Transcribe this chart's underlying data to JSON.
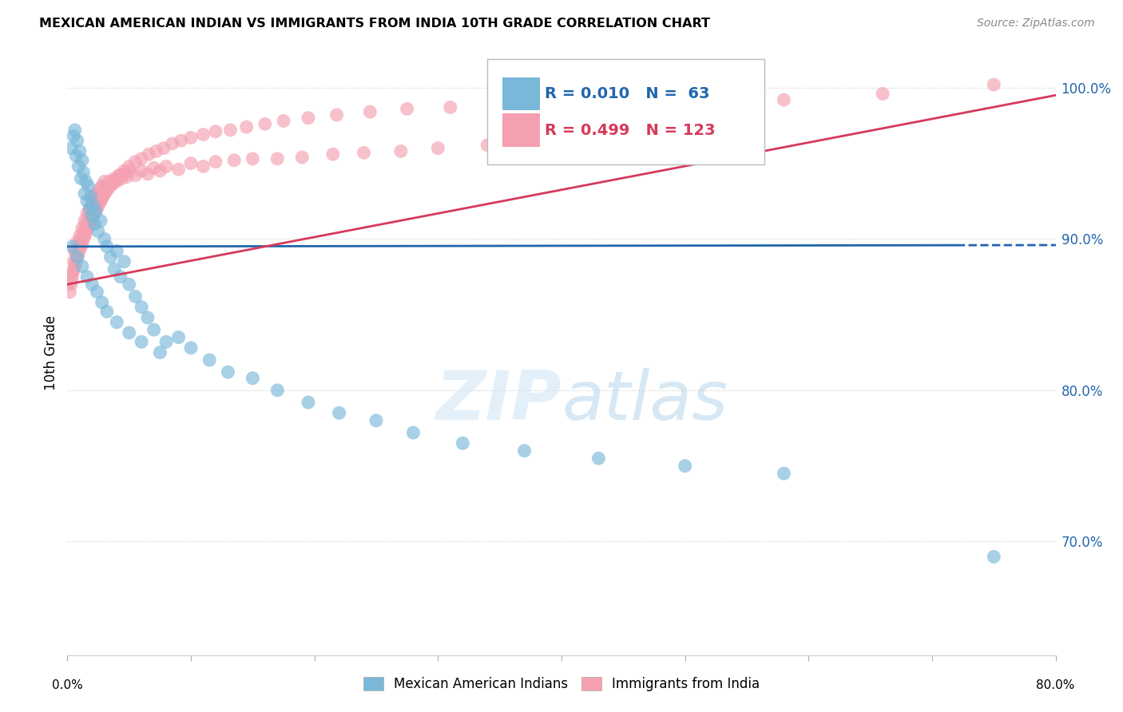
{
  "title": "MEXICAN AMERICAN INDIAN VS IMMIGRANTS FROM INDIA 10TH GRADE CORRELATION CHART",
  "source": "Source: ZipAtlas.com",
  "ylabel": "10th Grade",
  "xlim": [
    0.0,
    0.8
  ],
  "ylim": [
    0.625,
    1.025
  ],
  "yticks": [
    0.7,
    0.8,
    0.9,
    1.0
  ],
  "ytick_labels": [
    "70.0%",
    "80.0%",
    "90.0%",
    "100.0%"
  ],
  "blue_R": 0.01,
  "blue_N": 63,
  "pink_R": 0.499,
  "pink_N": 123,
  "blue_color": "#7ab8d9",
  "pink_color": "#f4a0b0",
  "blue_line_color": "#2166ac",
  "pink_line_color": "#d63a5a",
  "legend_blue_label": "Mexican American Indians",
  "legend_pink_label": "Immigrants from India",
  "watermark_zip": "ZIP",
  "watermark_atlas": "atlas",
  "blue_scatter_x": [
    0.003,
    0.005,
    0.006,
    0.007,
    0.008,
    0.009,
    0.01,
    0.011,
    0.012,
    0.013,
    0.014,
    0.015,
    0.016,
    0.017,
    0.018,
    0.019,
    0.02,
    0.021,
    0.022,
    0.023,
    0.025,
    0.027,
    0.03,
    0.032,
    0.035,
    0.038,
    0.04,
    0.043,
    0.046,
    0.05,
    0.055,
    0.06,
    0.065,
    0.07,
    0.08,
    0.09,
    0.1,
    0.115,
    0.13,
    0.15,
    0.17,
    0.195,
    0.22,
    0.25,
    0.28,
    0.32,
    0.37,
    0.43,
    0.5,
    0.58,
    0.004,
    0.008,
    0.012,
    0.016,
    0.02,
    0.024,
    0.028,
    0.032,
    0.04,
    0.05,
    0.06,
    0.075,
    0.75
  ],
  "blue_scatter_y": [
    0.96,
    0.968,
    0.972,
    0.955,
    0.965,
    0.948,
    0.958,
    0.94,
    0.952,
    0.944,
    0.93,
    0.938,
    0.925,
    0.935,
    0.92,
    0.928,
    0.915,
    0.922,
    0.91,
    0.918,
    0.905,
    0.912,
    0.9,
    0.895,
    0.888,
    0.88,
    0.892,
    0.875,
    0.885,
    0.87,
    0.862,
    0.855,
    0.848,
    0.84,
    0.832,
    0.835,
    0.828,
    0.82,
    0.812,
    0.808,
    0.8,
    0.792,
    0.785,
    0.78,
    0.772,
    0.765,
    0.76,
    0.755,
    0.75,
    0.745,
    0.895,
    0.888,
    0.882,
    0.875,
    0.87,
    0.865,
    0.858,
    0.852,
    0.845,
    0.838,
    0.832,
    0.825,
    0.69
  ],
  "pink_scatter_x": [
    0.003,
    0.004,
    0.005,
    0.006,
    0.007,
    0.008,
    0.009,
    0.01,
    0.011,
    0.012,
    0.013,
    0.014,
    0.015,
    0.016,
    0.017,
    0.018,
    0.019,
    0.02,
    0.021,
    0.022,
    0.023,
    0.024,
    0.025,
    0.026,
    0.027,
    0.028,
    0.029,
    0.03,
    0.032,
    0.034,
    0.036,
    0.038,
    0.04,
    0.042,
    0.044,
    0.046,
    0.048,
    0.05,
    0.055,
    0.06,
    0.065,
    0.07,
    0.075,
    0.08,
    0.09,
    0.1,
    0.11,
    0.12,
    0.135,
    0.15,
    0.17,
    0.19,
    0.215,
    0.24,
    0.27,
    0.3,
    0.34,
    0.385,
    0.44,
    0.51,
    0.004,
    0.006,
    0.008,
    0.01,
    0.012,
    0.014,
    0.016,
    0.018,
    0.02,
    0.022,
    0.024,
    0.026,
    0.028,
    0.03,
    0.033,
    0.036,
    0.039,
    0.042,
    0.046,
    0.05,
    0.055,
    0.06,
    0.066,
    0.072,
    0.078,
    0.085,
    0.092,
    0.1,
    0.11,
    0.12,
    0.132,
    0.145,
    0.16,
    0.175,
    0.195,
    0.218,
    0.245,
    0.275,
    0.31,
    0.35,
    0.4,
    0.455,
    0.52,
    0.002,
    0.003,
    0.005,
    0.007,
    0.009,
    0.011,
    0.013,
    0.015,
    0.017,
    0.019,
    0.021,
    0.023,
    0.025,
    0.027,
    0.029,
    0.031,
    0.033,
    0.58,
    0.66,
    0.75
  ],
  "pink_scatter_y": [
    0.87,
    0.878,
    0.885,
    0.892,
    0.89,
    0.898,
    0.895,
    0.902,
    0.9,
    0.907,
    0.905,
    0.912,
    0.91,
    0.917,
    0.915,
    0.92,
    0.918,
    0.925,
    0.923,
    0.928,
    0.926,
    0.93,
    0.928,
    0.933,
    0.931,
    0.935,
    0.933,
    0.938,
    0.935,
    0.938,
    0.936,
    0.94,
    0.938,
    0.942,
    0.94,
    0.943,
    0.941,
    0.945,
    0.942,
    0.945,
    0.943,
    0.947,
    0.945,
    0.948,
    0.946,
    0.95,
    0.948,
    0.951,
    0.952,
    0.953,
    0.953,
    0.954,
    0.956,
    0.957,
    0.958,
    0.96,
    0.962,
    0.965,
    0.968,
    0.972,
    0.875,
    0.882,
    0.888,
    0.893,
    0.897,
    0.902,
    0.906,
    0.91,
    0.913,
    0.917,
    0.92,
    0.924,
    0.927,
    0.93,
    0.933,
    0.936,
    0.939,
    0.942,
    0.945,
    0.948,
    0.951,
    0.953,
    0.956,
    0.958,
    0.96,
    0.963,
    0.965,
    0.967,
    0.969,
    0.971,
    0.972,
    0.974,
    0.976,
    0.978,
    0.98,
    0.982,
    0.984,
    0.986,
    0.987,
    0.988,
    0.989,
    0.99,
    0.991,
    0.865,
    0.872,
    0.879,
    0.885,
    0.89,
    0.895,
    0.9,
    0.904,
    0.908,
    0.912,
    0.916,
    0.919,
    0.922,
    0.925,
    0.928,
    0.931,
    0.934,
    0.992,
    0.996,
    1.002
  ]
}
